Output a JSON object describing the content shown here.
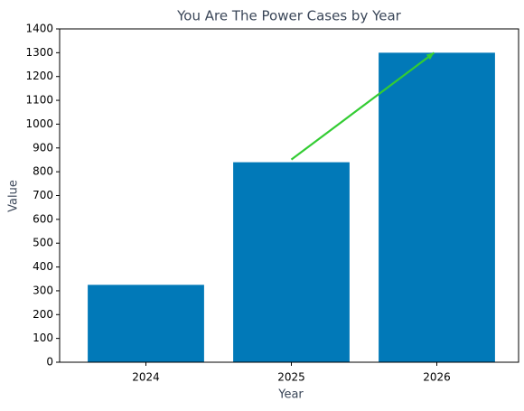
{
  "chart_data": {
    "type": "bar",
    "title": "You Are The Power Cases by Year",
    "x_label": "Year",
    "y_label": "Value",
    "categories": [
      "2024",
      "2025",
      "2026"
    ],
    "values": [
      325,
      840,
      1300
    ],
    "color": "#0179b8",
    "ylim": [
      0,
      1400
    ],
    "yticks": [
      0,
      100,
      200,
      300,
      400,
      500,
      600,
      700,
      800,
      900,
      1000,
      1100,
      1200,
      1300,
      1400
    ],
    "grid": false,
    "arrow_color": "#33cc33"
  }
}
